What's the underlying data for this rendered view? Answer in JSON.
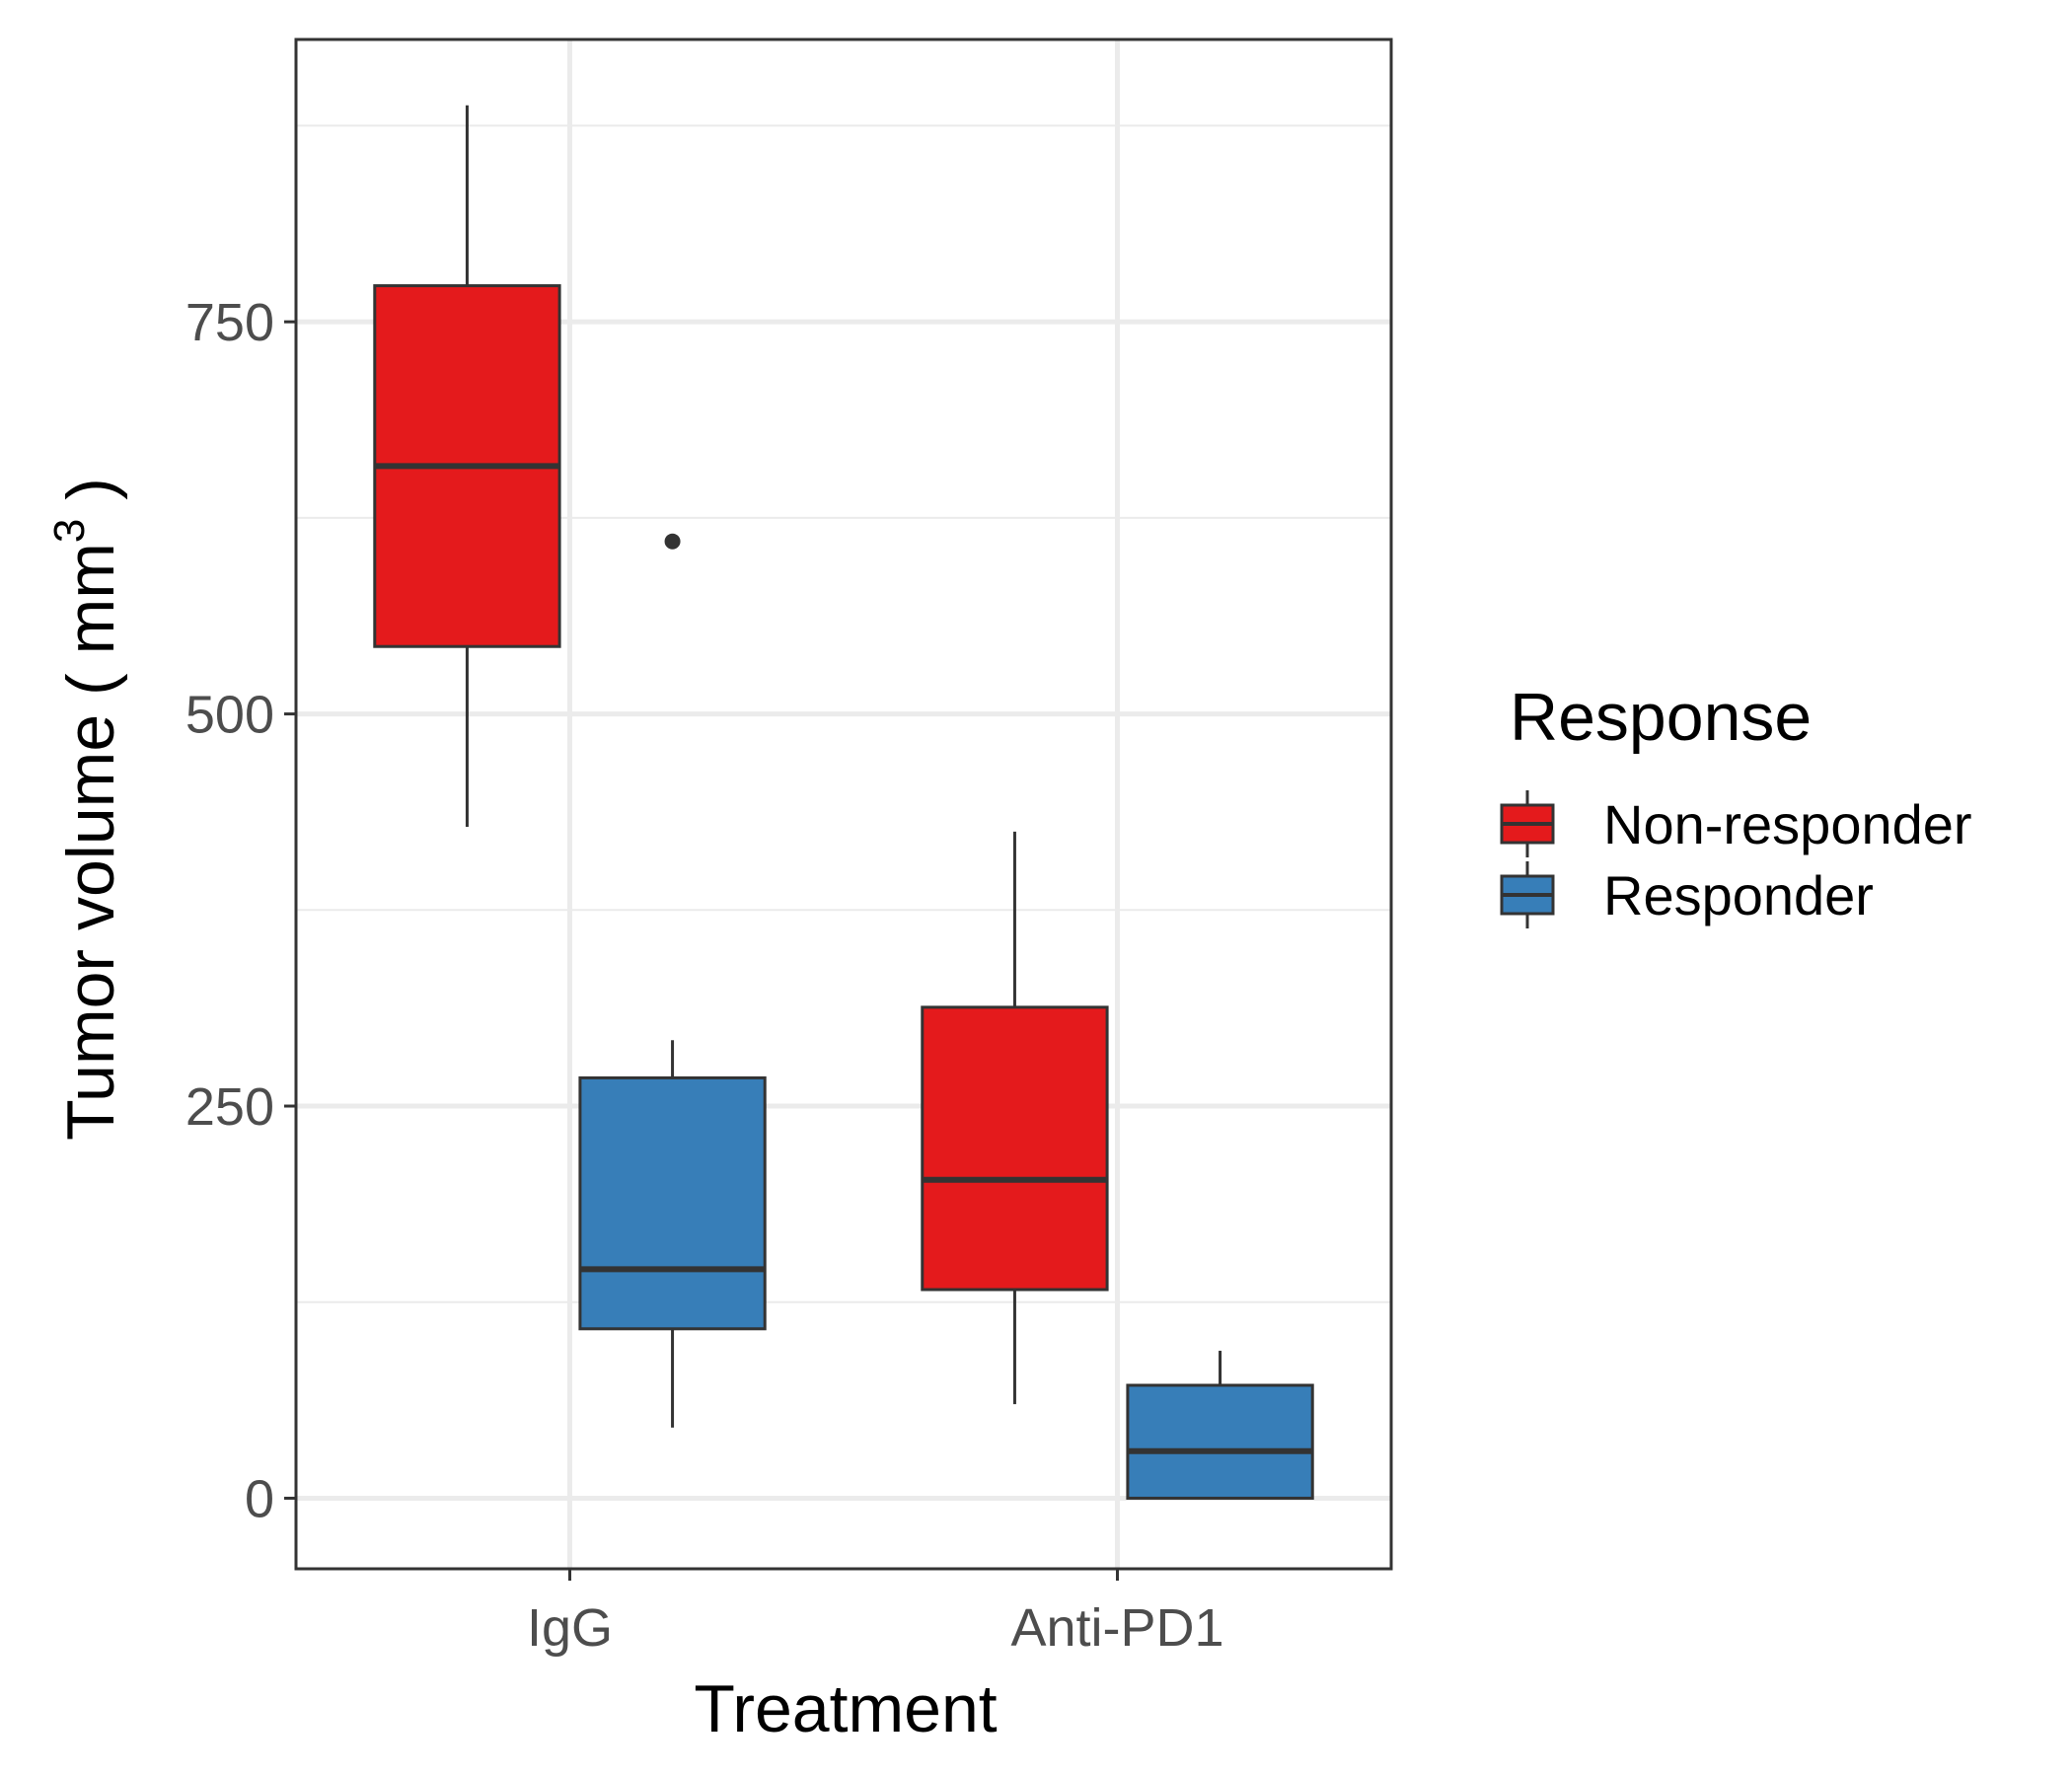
{
  "chart_data": {
    "type": "box",
    "xlabel": "Treatment",
    "ylabel_main": "Tumor volume ( mm",
    "ylabel_sup": "3",
    "ylabel_close": " )",
    "categories": [
      "IgG",
      "Anti-PD1"
    ],
    "ylim": [
      -45,
      930
    ],
    "yticks": [
      0,
      250,
      500,
      750
    ],
    "grid": true,
    "legend": {
      "title": "Response",
      "position": "right",
      "entries": [
        "Non-responder",
        "Responder"
      ]
    },
    "series": [
      {
        "name": "Non-responder",
        "color": "#e41a1c",
        "boxes": [
          {
            "category": "IgG",
            "min": 428,
            "q1": 543,
            "median": 658,
            "q3": 773,
            "max": 888,
            "outliers": []
          },
          {
            "category": "Anti-PD1",
            "min": 60,
            "q1": 133,
            "median": 203,
            "q3": 313,
            "max": 425,
            "outliers": []
          }
        ]
      },
      {
        "name": "Responder",
        "color": "#377eb8",
        "boxes": [
          {
            "category": "IgG",
            "min": 45,
            "q1": 108,
            "median": 146,
            "q3": 268,
            "max": 292,
            "outliers": [
              610
            ]
          },
          {
            "category": "Anti-PD1",
            "min": 0,
            "q1": 0,
            "median": 30,
            "q3": 72,
            "max": 94,
            "outliers": []
          }
        ]
      }
    ]
  }
}
